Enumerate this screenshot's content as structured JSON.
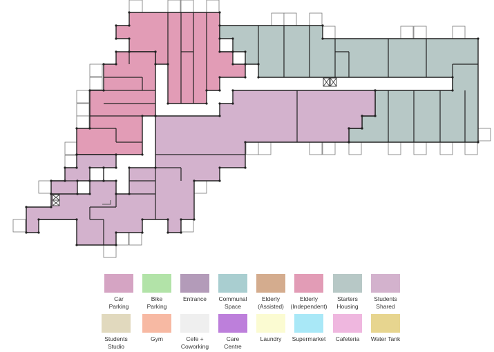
{
  "legend": {
    "items": [
      {
        "label": "Car\nParking",
        "color": "#d5a4c3"
      },
      {
        "label": "Bike\nParking",
        "color": "#b2e3a8"
      },
      {
        "label": "Entrance",
        "color": "#b39bb9"
      },
      {
        "label": "Communal\nSpace",
        "color": "#a9ced0"
      },
      {
        "label": "Elderly\n(Assisted)",
        "color": "#d4ac8e"
      },
      {
        "label": "Elderly\n(Independent)",
        "color": "#e29cb6"
      },
      {
        "label": "Starters\nHousing",
        "color": "#b7c8c6"
      },
      {
        "label": "Students\nShared",
        "color": "#d3b2cd"
      },
      {
        "label": "Students\nStudio",
        "color": "#e1d9be"
      },
      {
        "label": "Gym",
        "color": "#f7b9a3"
      },
      {
        "label": "Cefe +\nCoworking",
        "color": "#efefef"
      },
      {
        "label": "Care\nCentre",
        "color": "#bd7fdb"
      },
      {
        "label": "Laundry",
        "color": "#fbfbd2"
      },
      {
        "label": "Supermarket",
        "color": "#a9e8f7"
      },
      {
        "label": "Cafeteria",
        "color": "#efb7df"
      },
      {
        "label": "Water Tank",
        "color": "#e7d58f"
      }
    ]
  },
  "zone_colors": {
    "elderly_independent": "#e29cb6",
    "starters_housing": "#b7c8c6",
    "students_shared": "#d3b2cd",
    "wall": "#222222"
  }
}
